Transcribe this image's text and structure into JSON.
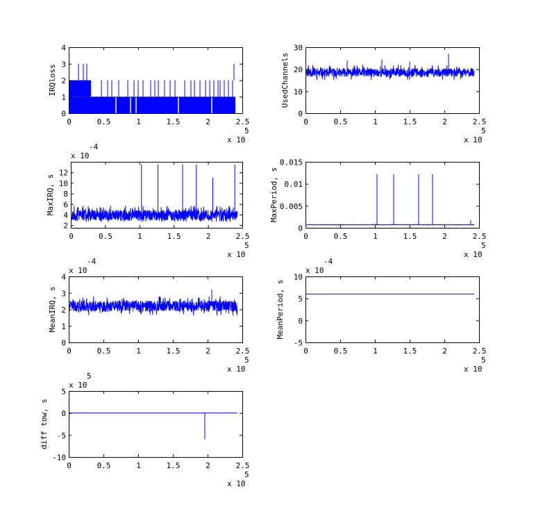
{
  "colors": {
    "series": "#0000ff",
    "axes": "#000000",
    "background": "#ffffff"
  },
  "chart_data": [
    {
      "id": "irqloss",
      "type": "line",
      "ylabel": "IRQloss",
      "xlim": [
        0,
        250000
      ],
      "ylim": [
        0,
        4
      ],
      "xticks": [
        "0",
        "0.5",
        "1",
        "1.5",
        "2",
        "2.5"
      ],
      "yticks": [
        "0",
        "1",
        "2",
        "3",
        "4"
      ],
      "xmult": {
        "text": "x 10",
        "exp": "5"
      },
      "ymult": null,
      "series": [
        {
          "kind": "band",
          "x": [
            0,
            240000
          ],
          "y": [
            0,
            1
          ]
        },
        {
          "kind": "band",
          "x": [
            0,
            32000
          ],
          "y": [
            1,
            2
          ]
        },
        {
          "kind": "spikes",
          "base": 1,
          "x": [
            3000,
            12000,
            20000,
            24000,
            28000,
            47000,
            56000,
            62000,
            72000,
            85000,
            94000,
            100000,
            107000,
            118000,
            124000,
            129000,
            138000,
            146000,
            153000,
            167000,
            176000,
            181000,
            189000,
            197000,
            203000,
            209000,
            215000,
            218000,
            224000,
            230000,
            236000
          ],
          "y": [
            2,
            2,
            2,
            2,
            2,
            2,
            2,
            2,
            2,
            2,
            2,
            2,
            2,
            2,
            2,
            2,
            2,
            2,
            2,
            2,
            2,
            2,
            2,
            2,
            2,
            2,
            2,
            2,
            2,
            2,
            2
          ]
        },
        {
          "kind": "spikes",
          "base": 2,
          "x": [
            14000,
            21000,
            26000,
            238000
          ],
          "y": [
            3,
            3,
            3,
            3
          ]
        },
        {
          "kind": "gaps",
          "x": [
            68000,
            89000,
            97000,
            158000,
            206000
          ],
          "y": [
            0,
            0,
            0,
            0,
            0
          ]
        }
      ]
    },
    {
      "id": "usedchannels",
      "type": "line",
      "ylabel": "UsedChannels",
      "xlim": [
        0,
        250000
      ],
      "ylim": [
        0,
        30
      ],
      "xticks": [
        "0",
        "0.5",
        "1",
        "1.5",
        "2",
        "2.5"
      ],
      "yticks": [
        "0",
        "10",
        "20",
        "30"
      ],
      "xmult": {
        "text": "x 10",
        "exp": "5"
      },
      "ymult": null,
      "series": [
        {
          "kind": "noise",
          "x": [
            0,
            243000
          ],
          "mean": 18.5,
          "amp": 3.5,
          "n": 900,
          "seed": 11
        },
        {
          "kind": "spikes",
          "base": 19,
          "x": [
            60000,
            110000,
            150000,
            206000
          ],
          "y": [
            24,
            24.5,
            23.5,
            27
          ]
        }
      ]
    },
    {
      "id": "maxirq",
      "type": "line",
      "ylabel": "MaxIRQ, s",
      "xlim": [
        0,
        250000
      ],
      "ylim": [
        1.5,
        14
      ],
      "xticks": [
        "0",
        "0.5",
        "1",
        "1.5",
        "2",
        "2.5"
      ],
      "yticks": [
        "2",
        "4",
        "6",
        "8",
        "10",
        "12"
      ],
      "xmult": {
        "text": "x 10",
        "exp": "5"
      },
      "ymult": {
        "text": "x 10",
        "exp": "-4"
      },
      "series": [
        {
          "kind": "noise",
          "x": [
            0,
            243000
          ],
          "mean": 3.9,
          "amp": 1.8,
          "n": 1100,
          "seed": 23,
          "floor": 2.6
        },
        {
          "kind": "spikes",
          "base": 4,
          "x": [
            103000,
            127000,
            163000,
            183000,
            207000,
            239000
          ],
          "y": [
            13.5,
            13.5,
            13.5,
            13.5,
            11,
            13.5
          ]
        }
      ]
    },
    {
      "id": "maxperiod",
      "type": "line",
      "ylabel": "MaxPeriod, s",
      "xlim": [
        0,
        250000
      ],
      "ylim": [
        0,
        0.015
      ],
      "xticks": [
        "0",
        "0.5",
        "1",
        "1.5",
        "2",
        "2.5"
      ],
      "yticks": [
        "0",
        "0.005",
        "0.01",
        "0.015"
      ],
      "xmult": {
        "text": "x 10",
        "exp": "5"
      },
      "ymult": null,
      "series": [
        {
          "kind": "noise",
          "x": [
            0,
            243000
          ],
          "mean": 0.0007,
          "amp": 0.0001,
          "n": 400,
          "seed": 5
        },
        {
          "kind": "spikes",
          "base": 0.0007,
          "x": [
            103000,
            127000,
            163000,
            183000,
            238000
          ],
          "y": [
            0.0122,
            0.0122,
            0.0122,
            0.0122,
            0.0017
          ]
        }
      ]
    },
    {
      "id": "meanirq",
      "type": "line",
      "ylabel": "MeanIRQ, s",
      "xlim": [
        0,
        250000
      ],
      "ylim": [
        0,
        4
      ],
      "xticks": [
        "0",
        "0.5",
        "1",
        "1.5",
        "2",
        "2.5"
      ],
      "yticks": [
        "0",
        "1",
        "2",
        "3",
        "4"
      ],
      "xmult": {
        "text": "x 10",
        "exp": "5"
      },
      "ymult": {
        "text": "x 10",
        "exp": "-4"
      },
      "series": [
        {
          "kind": "noise",
          "x": [
            0,
            243000
          ],
          "mean": 2.2,
          "amp": 0.6,
          "n": 900,
          "seed": 41
        },
        {
          "kind": "spikes",
          "base": 2.2,
          "x": [
            206000
          ],
          "y": [
            3.2
          ]
        }
      ]
    },
    {
      "id": "meanperiod",
      "type": "line",
      "ylabel": "MeanPeriod, s",
      "xlim": [
        0,
        250000
      ],
      "ylim": [
        -5,
        10
      ],
      "xticks": [
        "0",
        "0.5",
        "1",
        "1.5",
        "2",
        "2.5"
      ],
      "yticks": [
        "-5",
        "0",
        "5",
        "10"
      ],
      "xmult": {
        "text": "x 10",
        "exp": "5"
      },
      "ymult": {
        "text": "x 10",
        "exp": "-4"
      },
      "series": [
        {
          "kind": "line",
          "x": [
            0,
            243000
          ],
          "y": [
            6,
            6
          ]
        }
      ]
    },
    {
      "id": "difftow",
      "type": "line",
      "ylabel": "diff tow, s",
      "xlim": [
        0,
        250000
      ],
      "ylim": [
        -10,
        5
      ],
      "xticks": [
        "0",
        "0.5",
        "1",
        "1.5",
        "2",
        "2.5"
      ],
      "yticks": [
        "-10",
        "-5",
        "0",
        "5"
      ],
      "xmult": {
        "text": "x 10",
        "exp": "5"
      },
      "ymult": {
        "text": "x 10",
        "exp": "5"
      },
      "series": [
        {
          "kind": "line",
          "x": [
            0,
            243000
          ],
          "y": [
            0,
            0
          ]
        },
        {
          "kind": "spikes",
          "base": 0,
          "x": [
            196000
          ],
          "y": [
            -6
          ]
        }
      ]
    }
  ]
}
